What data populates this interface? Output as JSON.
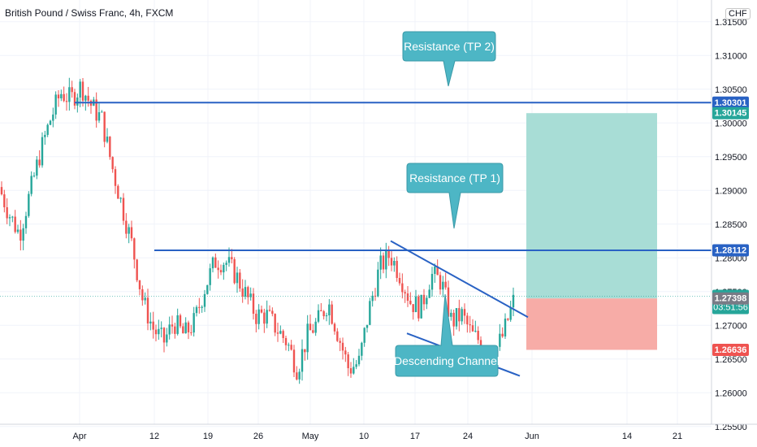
{
  "header": {
    "title": "British Pound / Swiss Franc, 4h, FXCM",
    "currency": "CHF"
  },
  "colors": {
    "up": "#26a69a",
    "down": "#ef5350",
    "line": "#2962c4",
    "callout": "#4db6c5",
    "target_zone": "#a8ddd6",
    "stop_zone": "#f7aca7"
  },
  "chart_data": {
    "type": "candlestick",
    "symbol": "British Pound / Swiss Franc",
    "interval": "4h",
    "source": "FXCM",
    "y_axis": {
      "ylim": [
        1.2525,
        1.3175
      ],
      "tick_labels": [
        "1.31500",
        "1.31000",
        "1.30500",
        "1.30000",
        "1.29500",
        "1.29000",
        "1.28500",
        "1.28000",
        "1.27500",
        "1.27000",
        "1.26500",
        "1.26000",
        "1.25500"
      ],
      "ticks": [
        1.315,
        1.31,
        1.305,
        1.3,
        1.295,
        1.29,
        1.285,
        1.28,
        1.275,
        1.27,
        1.265,
        1.26,
        1.255
      ]
    },
    "x_axis": {
      "tick_labels": [
        "Apr",
        "12",
        "19",
        "26",
        "May",
        "10",
        "17",
        "24",
        "Jun",
        "14",
        "21"
      ]
    },
    "price_path": [
      1.2905,
      1.2865,
      1.2835,
      1.2895,
      1.2955,
      1.3005,
      1.3045,
      1.3035,
      1.3055,
      1.3025,
      1.3005,
      1.2935,
      1.2875,
      1.2815,
      1.2735,
      1.2695,
      1.2675,
      1.2705,
      1.2685,
      1.2705,
      1.2755,
      1.2795,
      1.2795,
      1.2775,
      1.2745,
      1.2715,
      1.2715,
      1.2695,
      1.2675,
      1.2635,
      1.2685,
      1.2705,
      1.2735,
      1.2685,
      1.2635,
      1.2645,
      1.2725,
      1.2785,
      1.2805,
      1.2775,
      1.2735,
      1.2725,
      1.2775,
      1.2765,
      1.2705,
      1.2715,
      1.2685,
      1.2675,
      1.2655,
      1.2685,
      1.2735
    ],
    "horizontal_levels": [
      {
        "label": "Resistance (TP 2)",
        "value": 1.30301
      },
      {
        "label": "Resistance (TP 1)",
        "value": 1.28112
      }
    ],
    "price_labels": [
      {
        "text": "1.30301",
        "value": 1.30301,
        "color": "#2962c4"
      },
      {
        "text": "1.30145",
        "value": 1.30145,
        "color": "#26a69a"
      },
      {
        "text": "1.28112",
        "value": 1.28112,
        "color": "#2962c4"
      },
      {
        "text": "1.27431",
        "value": 1.27431,
        "color": "#26a69a",
        "sub": "03:51:56"
      },
      {
        "text": "1.27398",
        "value": 1.27398,
        "color": "#787b86"
      },
      {
        "text": "1.26636",
        "value": 1.26636,
        "color": "#ef5350"
      }
    ],
    "position": {
      "entry": 1.27398,
      "target": 1.30145,
      "stop": 1.26636
    },
    "channel": {
      "upper": [
        [
          1.2825,
          1.2712
        ]
      ],
      "lower": [
        [
          1.2688,
          1.2625
        ]
      ]
    },
    "annotations": [
      {
        "name": "tp2",
        "text": "Resistance (TP 2)"
      },
      {
        "name": "tp1",
        "text": "Resistance (TP 1)"
      },
      {
        "name": "channel",
        "text": "Descending Channel"
      }
    ],
    "last_price": 1.27431,
    "countdown": "03:51:56"
  }
}
